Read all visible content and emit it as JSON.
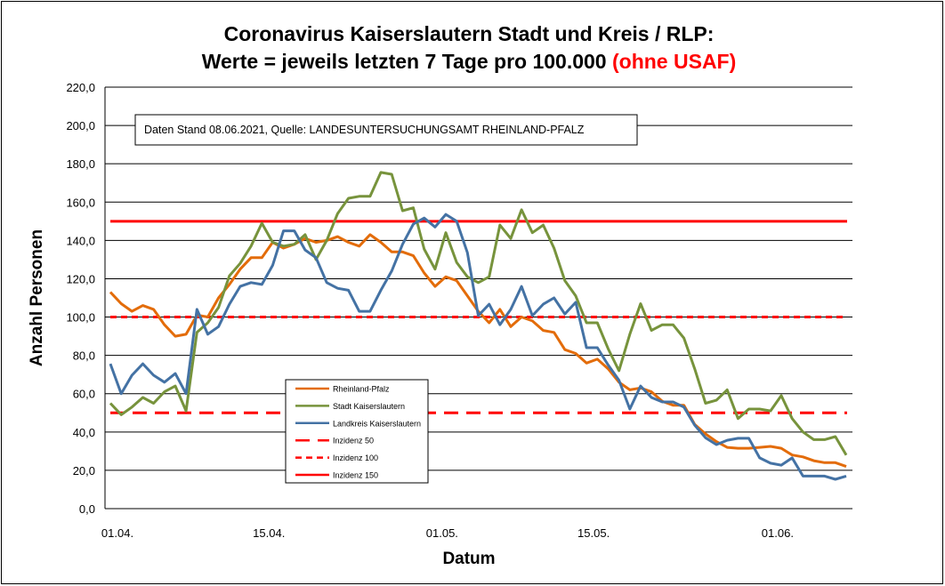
{
  "chart_data": {
    "type": "line",
    "title_line1": "Coronavirus Kaiserslautern Stadt und Kreis / RLP:",
    "title_line2_main": "Werte = jeweils letzten 7 Tage pro 100.000 ",
    "title_line2_highlight": "(ohne USAF)",
    "annotation": "Daten Stand 08.06.2021, Quelle: LANDESUNTERSUCHUNGSAMT RHEINLAND-PFALZ",
    "xlabel": "Datum",
    "ylabel": "Anzahl Personen",
    "ylim": [
      0,
      220
    ],
    "yticks": [
      "0,0",
      "20,0",
      "40,0",
      "60,0",
      "80,0",
      "100,0",
      "120,0",
      "140,0",
      "160,0",
      "180,0",
      "200,0",
      "220,0"
    ],
    "x_start": "01.04.2021",
    "x_end": "08.06.2021",
    "xticks": [
      {
        "label": "01.04.",
        "day_index": 0
      },
      {
        "label": "15.04.",
        "day_index": 14
      },
      {
        "label": "01.05.",
        "day_index": 30
      },
      {
        "label": "15.05.",
        "day_index": 44
      },
      {
        "label": "01.06.",
        "day_index": 61
      }
    ],
    "grid": true,
    "legend_placement": "lower-left-center",
    "series": [
      {
        "name": "Rheinland-Pfalz",
        "color": "#E36C0A",
        "style": "solid",
        "values": [
          113,
          107,
          103,
          106,
          104,
          96,
          90,
          91,
          101,
          100,
          110,
          117,
          125,
          131,
          131,
          139,
          136,
          138,
          141,
          139,
          140,
          142,
          139,
          137,
          143,
          139,
          134,
          134,
          132,
          123,
          116,
          121,
          119,
          111,
          103,
          97,
          104,
          95,
          100,
          98,
          93,
          92,
          83,
          81,
          76,
          78,
          73,
          66,
          62,
          63,
          61,
          56,
          54,
          54,
          44,
          39,
          35,
          32,
          31.5,
          31.5,
          32,
          32.5,
          31.5,
          28,
          27,
          25,
          24,
          24,
          22
        ]
      },
      {
        "name": "Stadt Kaiserslautern",
        "color": "#77933C",
        "style": "solid",
        "values": [
          55,
          49,
          53,
          58,
          55,
          61,
          64,
          51,
          92,
          97,
          105,
          121.5,
          128,
          137,
          149,
          139,
          137,
          138,
          143,
          130,
          140,
          154,
          162,
          163,
          163,
          175.5,
          174.5,
          155.5,
          157,
          135.5,
          125,
          144,
          128.5,
          121,
          118,
          121,
          148,
          141,
          156,
          144,
          148,
          136,
          119,
          111,
          97,
          97,
          83.5,
          72,
          91,
          107,
          93,
          96,
          96,
          89,
          73,
          55,
          56.6,
          62,
          47,
          52,
          52,
          51,
          59,
          47,
          40,
          36,
          36,
          37.6,
          28
        ]
      },
      {
        "name": "Landkreis Kaiserslautern",
        "color": "#4472A4",
        "style": "solid",
        "values": [
          75.6,
          60,
          69.6,
          75.6,
          69.6,
          66,
          70.5,
          60,
          104,
          91,
          95,
          106.7,
          116,
          118,
          117,
          127,
          145,
          145,
          135,
          131,
          118,
          115,
          114,
          103,
          103,
          114,
          124,
          138,
          148.5,
          151.7,
          147,
          153.6,
          150,
          133.6,
          100.7,
          106.7,
          96,
          104,
          116,
          100.7,
          106.7,
          110,
          101.6,
          107.7,
          84,
          84,
          75,
          67,
          52,
          64,
          58,
          55.7,
          55.7,
          53,
          43.6,
          37,
          33.4,
          35.7,
          36.7,
          36.7,
          26.5,
          23.7,
          22.7,
          26.5,
          17,
          17,
          17,
          15.3,
          17
        ]
      },
      {
        "name": "Inzidenz 50",
        "color": "#FF0000",
        "style": "longdash",
        "constant": 50
      },
      {
        "name": "Inzidenz 100",
        "color": "#FF0000",
        "style": "shortdash",
        "constant": 100
      },
      {
        "name": "Inzidenz 150",
        "color": "#FF0000",
        "style": "solid",
        "constant": 150
      }
    ]
  }
}
